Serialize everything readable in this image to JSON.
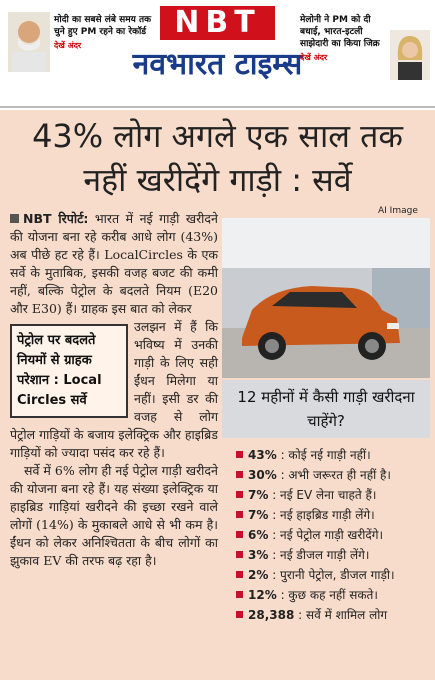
{
  "header": {
    "left_teaser": {
      "text": "मोदी का सबसे लंबे समय तक चुने हुए PM रहने का रेकॉर्ड",
      "more": "देखें अंदर"
    },
    "brand": "NBT",
    "masthead": "नवभारत टाइम्स",
    "right_teaser": {
      "text": "मेलोनी ने PM को दी बधाई, भारत-इटली साझेदारी का किया जिक्र",
      "more": "देखें अंदर"
    }
  },
  "headline": "43% लोग अगले एक साल तक नहीं खरीदेंगे गाड़ी : सर्वे",
  "body": {
    "lead": "NBT रिपोर्ट:",
    "paragraph_1": "भारत में नई गाड़ी खरीदने की योजना बना रहे करीब आधे लोग (43%) अब पीछे हट रहे हैं। LocalCircles के एक सर्वे के मुताबिक, इसकी वजह बजट की कमी नहीं, बल्कि पेट्रोल के बदलते नियम (E20 और E30) हैं। ग्राहक इस बात को लेकर",
    "paragraph_1_cont": "उलझन में हैं कि भविष्य में उनकी गाड़ी के लिए सही ईंधन मिलेगा या नहीं। इसी डर की वजह से लोग पेट्रोल गाड़ियों के बजाय इलेक्ट्रिक और हाइब्रिड गाड़ियों को ज्यादा पसंद कर रहे हैं।",
    "pullquote": "पेट्रोल पर बदलते नियमों से ग्राहक परेशान : Local Circles सर्वे",
    "paragraph_2": "सर्वे में 6% लोग ही नई पेट्रोल गाड़ी खरीदने की योजना बना रहे हैं। यह संख्या इलेक्ट्रिक या हाइब्रिड गाड़ियां खरीदने की इच्छा रखने वाले लोगों (14%) के मुकाबले आधे से भी कम है। ईंधन को लेकर अनिश्चितता के बीच लोगों का झुकाव EV की तरफ बढ़ रहा है।"
  },
  "image_credit": "AI Image",
  "infobox": {
    "title": "12 महीनों में कैसी गाड़ी खरीदना चाहेंगे?",
    "items": [
      {
        "value": "43%",
        "text": ": कोई नई गाड़ी नहीं।"
      },
      {
        "value": "30%",
        "text": ": अभी जरूरत ही नहीं है।"
      },
      {
        "value": "7%",
        "text": ": नई EV लेना चाहते हैं।"
      },
      {
        "value": "7%",
        "text": ": नई हाइब्रिड गाड़ी लेंगे।"
      },
      {
        "value": "6%",
        "text": ": नई पेट्रोल गाड़ी खरीदेंगे।"
      },
      {
        "value": "3%",
        "text": ": नई डीजल गाड़ी लेंगे।"
      },
      {
        "value": "2%",
        "text": ": पुरानी पेट्रोल, डीजल गाड़ी।"
      },
      {
        "value": "12%",
        "text": ": कुछ कह नहीं सकते।"
      },
      {
        "value": "28,388",
        "text": ": सर्वे में शामिल लोग"
      }
    ]
  }
}
